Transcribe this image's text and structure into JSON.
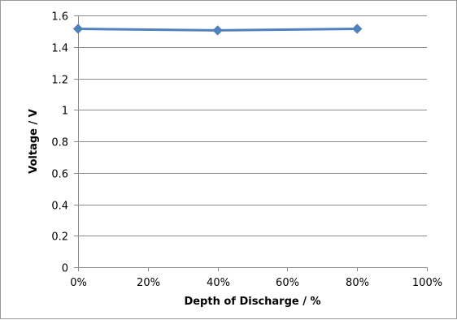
{
  "chart_data": {
    "type": "line",
    "title": "",
    "xlabel": "Depth of Discharge / %",
    "ylabel": "Voltage  /  V",
    "x": [
      0,
      40,
      80
    ],
    "series": [
      {
        "values": [
          1.515,
          1.505,
          1.515
        ],
        "color": "#4F81BD",
        "marker": "diamond"
      }
    ],
    "xlim": [
      0,
      100
    ],
    "ylim": [
      0,
      1.6
    ],
    "xticks": [
      0,
      20,
      40,
      60,
      80,
      100
    ],
    "xtick_labels": [
      "0%",
      "20%",
      "40%",
      "60%",
      "80%",
      "100%"
    ],
    "yticks": [
      0,
      0.2,
      0.4,
      0.6,
      0.8,
      1,
      1.2,
      1.4,
      1.6
    ],
    "ytick_labels": [
      "0",
      "0.2",
      "0.4",
      "0.6",
      "0.8",
      "1",
      "1.2",
      "1.4",
      "1.6"
    ],
    "grid": "horizontal",
    "legend": "none",
    "colors": {
      "gridline": "#8C8C8C",
      "axis": "#8C8C8C",
      "series": "#4F81BD"
    }
  }
}
